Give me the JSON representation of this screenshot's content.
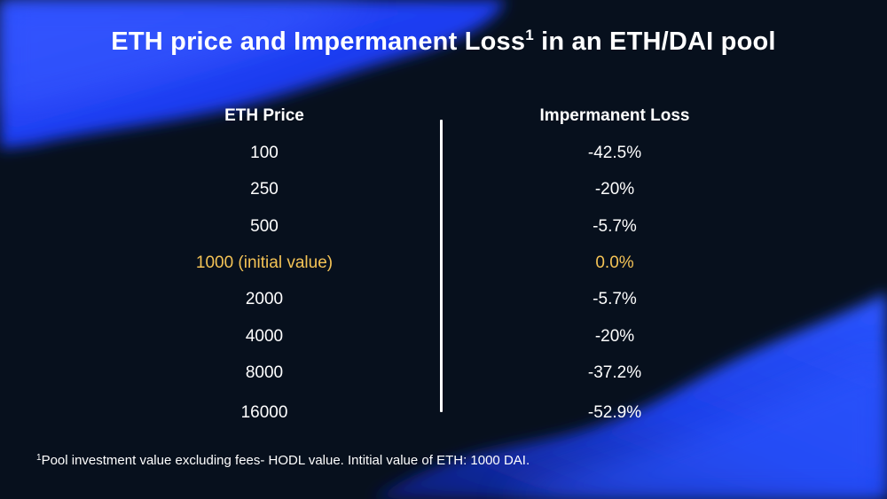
{
  "slide": {
    "title": "ETH price and Impermanent Loss",
    "title_superscript": "1",
    "title_suffix": " in an ETH/DAI pool",
    "columns": {
      "left_header": "ETH Price",
      "right_header": "Impermanent Loss"
    },
    "rows": [
      {
        "price": "100",
        "loss": "-42.5%",
        "highlight": false
      },
      {
        "price": "250",
        "loss": "-20%",
        "highlight": false
      },
      {
        "price": "500",
        "loss": "-5.7%",
        "highlight": false
      },
      {
        "price": "1000 (initial value)",
        "loss": "0.0%",
        "highlight": true
      },
      {
        "price": "2000",
        "loss": "-5.7%",
        "highlight": false
      },
      {
        "price": "4000",
        "loss": "-20%",
        "highlight": false
      },
      {
        "price": "8000",
        "loss": "-37.2%",
        "highlight": false
      },
      {
        "price": "16000",
        "loss": "-52.9%",
        "highlight": false
      }
    ],
    "footnote_marker": "1",
    "footnote_text": "Pool investment value excluding fees- HODL value. Intitial value of ETH: 1000 DAI."
  },
  "colors": {
    "background": "#07101d",
    "accent_blue": "#1f46ff",
    "highlight": "#f4c356",
    "text": "#ffffff"
  }
}
